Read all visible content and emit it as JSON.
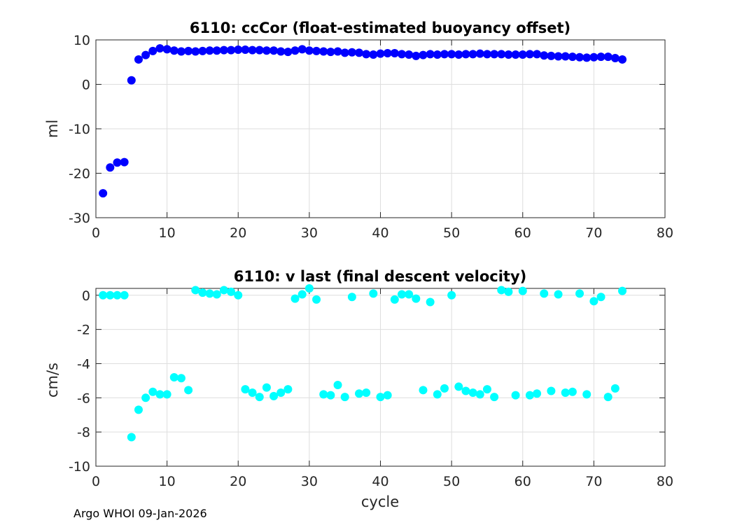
{
  "footer": "Argo WHOI 09-Jan-2026",
  "chart_data": [
    {
      "type": "scatter",
      "title": "6110: ccCor (float-estimated buoyancy offset)",
      "xlabel": "",
      "ylabel": "ml",
      "xlim": [
        0,
        80
      ],
      "ylim": [
        -30,
        10
      ],
      "xticks": [
        0,
        10,
        20,
        30,
        40,
        50,
        60,
        70,
        80
      ],
      "yticks": [
        -30,
        -20,
        -10,
        0,
        10
      ],
      "grid": true,
      "marker_color": "#0000ff",
      "series": [
        {
          "x": [
            1,
            2,
            3,
            4,
            5,
            6,
            7,
            8,
            9,
            10,
            11,
            12,
            13,
            14,
            15,
            16,
            17,
            18,
            19,
            20,
            21,
            22,
            23,
            24,
            25,
            26,
            27,
            28,
            29,
            30,
            31,
            32,
            33,
            34,
            35,
            36,
            37,
            38,
            39,
            40,
            41,
            42,
            43,
            44,
            45,
            46,
            47,
            48,
            49,
            50,
            51,
            52,
            53,
            54,
            55,
            56,
            57,
            58,
            59,
            60,
            61,
            62,
            63,
            64,
            65,
            66,
            67,
            68,
            69,
            70,
            71,
            72,
            73,
            74
          ],
          "y": [
            -24.5,
            -18.7,
            -17.6,
            -17.5,
            0.9,
            5.6,
            6.6,
            7.5,
            8.1,
            7.9,
            7.6,
            7.4,
            7.5,
            7.4,
            7.5,
            7.6,
            7.6,
            7.7,
            7.7,
            7.8,
            7.8,
            7.7,
            7.7,
            7.6,
            7.6,
            7.4,
            7.3,
            7.6,
            7.9,
            7.6,
            7.5,
            7.4,
            7.3,
            7.4,
            7.1,
            7.2,
            7.1,
            6.8,
            6.7,
            6.9,
            7.0,
            7.0,
            6.8,
            6.7,
            6.4,
            6.6,
            6.8,
            6.7,
            6.8,
            6.8,
            6.7,
            6.8,
            6.8,
            6.9,
            6.8,
            6.8,
            6.8,
            6.7,
            6.7,
            6.7,
            6.8,
            6.8,
            6.5,
            6.4,
            6.3,
            6.3,
            6.2,
            6.1,
            6.0,
            6.1,
            6.2,
            6.2,
            5.9,
            5.6
          ]
        }
      ]
    },
    {
      "type": "scatter",
      "title": "6110: v last (final descent velocity)",
      "xlabel": "cycle",
      "ylabel": "cm/s",
      "xlim": [
        0,
        80
      ],
      "ylim": [
        -10,
        0.4
      ],
      "xticks": [
        0,
        10,
        20,
        30,
        40,
        50,
        60,
        70,
        80
      ],
      "yticks": [
        -10,
        -8,
        -6,
        -4,
        -2,
        0
      ],
      "grid": true,
      "marker_color": "#00ffff",
      "series": [
        {
          "x": [
            1,
            2,
            3,
            4,
            5,
            6,
            7,
            8,
            9,
            10,
            11,
            12,
            13,
            14,
            15,
            16,
            17,
            18,
            19,
            20,
            21,
            22,
            23,
            24,
            25,
            26,
            27,
            28,
            29,
            30,
            31,
            32,
            33,
            34,
            35,
            36,
            37,
            38,
            39,
            40,
            41,
            42,
            43,
            44,
            45,
            46,
            47,
            48,
            49,
            50,
            51,
            52,
            53,
            54,
            55,
            56,
            57,
            58,
            59,
            60,
            61,
            62,
            63,
            64,
            65,
            66,
            67,
            68,
            69,
            70,
            71,
            72,
            73,
            74
          ],
          "y": [
            0.0,
            0.0,
            0.0,
            0.0,
            -8.3,
            -6.7,
            -6.0,
            -5.65,
            -5.8,
            -5.8,
            -4.8,
            -4.85,
            -5.55,
            0.3,
            0.15,
            0.1,
            0.05,
            0.3,
            0.2,
            0.0,
            -5.5,
            -5.7,
            -5.95,
            -5.4,
            -5.9,
            -5.7,
            -5.5,
            -0.2,
            0.05,
            0.4,
            -0.25,
            -5.8,
            -5.85,
            -5.25,
            -5.95,
            -0.1,
            -5.75,
            -5.7,
            0.1,
            -5.95,
            -5.85,
            -0.25,
            0.05,
            0.05,
            -0.2,
            -5.55,
            -0.4,
            -5.8,
            -5.45,
            0.0,
            -5.35,
            -5.6,
            -5.7,
            -5.8,
            -5.5,
            -5.95,
            0.3,
            0.2,
            -5.85,
            0.25,
            -5.85,
            -5.75,
            0.1,
            -5.6,
            0.05,
            -5.7,
            -5.65,
            0.1,
            -5.8,
            -0.35,
            -0.1,
            -5.95,
            -5.45,
            0.25
          ]
        }
      ]
    }
  ]
}
